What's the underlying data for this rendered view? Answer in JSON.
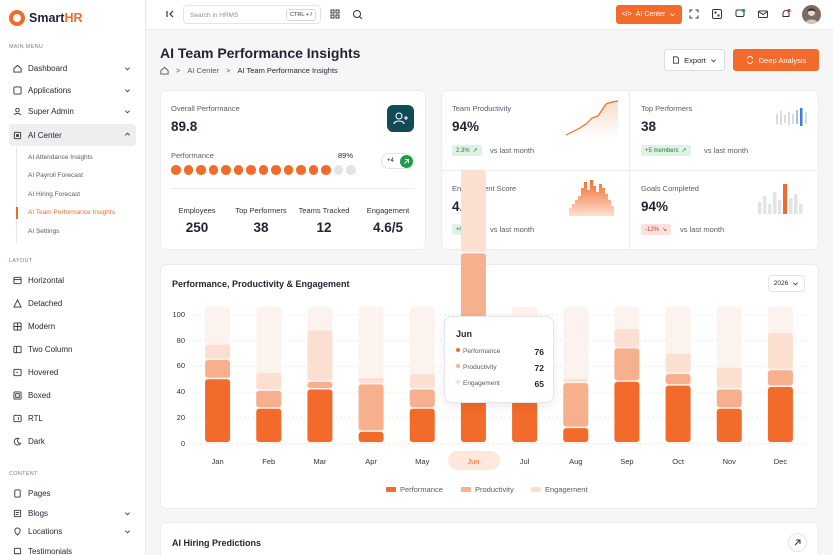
{
  "brand": {
    "name_a": "Smart",
    "name_b": "HR"
  },
  "sidebar": {
    "main_menu": "MAIN MENU",
    "items": [
      {
        "label": "Dashboard"
      },
      {
        "label": "Applications"
      },
      {
        "label": "Super Admin"
      },
      {
        "label": "AI Center"
      }
    ],
    "ai_sub": [
      "AI Attendance Insights",
      "AI Payroll Forecast",
      "AI Hiring Forecast",
      "AI Team Performance Insights",
      "AI Settings"
    ],
    "layout_header": "LAYOUT",
    "layout_items": [
      "Horizontal",
      "Detached",
      "Modern",
      "Two Column",
      "Hovered",
      "Boxed",
      "RTL",
      "Dark"
    ],
    "content_header": "CONTENT",
    "content_items": [
      "Pages",
      "Blogs",
      "Locations",
      "Testimonials"
    ]
  },
  "topbar": {
    "search_placeholder": "Search in HRMS",
    "shortcut": "CTRL + /",
    "ai_center": "AI Center"
  },
  "page": {
    "title": "AI Team Performance Insights",
    "crumb1": "AI Center",
    "crumb2": "AI Team Performance Insights",
    "export": "Export",
    "deep": "Deep Analysis"
  },
  "overall": {
    "label": "Overall Performance",
    "value": "89.8",
    "perf_label": "Performance",
    "perf_pct": "89%",
    "perf_fraction": 0.89,
    "plus": "+4",
    "stats": [
      {
        "label": "Employees",
        "value": "250"
      },
      {
        "label": "Top Performers",
        "value": "38"
      },
      {
        "label": "Teams Tracked",
        "value": "12"
      },
      {
        "label": "Engagement",
        "value": "4.6/5"
      }
    ]
  },
  "kpis": [
    {
      "label": "Team Productivity",
      "value": "94%",
      "badge": "2.3%",
      "trend": "up",
      "vs": "vs last month"
    },
    {
      "label": "Top Performers",
      "value": "38",
      "badge": "+5 members",
      "trend": "up",
      "vs": "vs last month"
    },
    {
      "label": "Engagement Score",
      "value": "4.6/5",
      "badge": "+0.3",
      "trend": "up",
      "vs": "vs last month"
    },
    {
      "label": "Goals Completed",
      "value": "94%",
      "badge": "-12%",
      "trend": "down",
      "vs": "vs last month"
    }
  ],
  "chart_title": "Performance, Productivity & Engagement",
  "year": "2026",
  "tooltip": {
    "month": "Jun",
    "rows": [
      {
        "name": "Performance",
        "value": "76"
      },
      {
        "name": "Productivity",
        "value": "72"
      },
      {
        "name": "Engagement",
        "value": "65"
      }
    ]
  },
  "chart_data": {
    "type": "bar",
    "categories": [
      "Jan",
      "Feb",
      "Mar",
      "Apr",
      "May",
      "Jun",
      "Jul",
      "Aug",
      "Sep",
      "Oct",
      "Nov",
      "Dec"
    ],
    "series": [
      {
        "name": "Performance",
        "values": [
          50,
          27,
          42,
          9,
          27,
          76,
          52,
          12,
          48,
          45,
          27,
          44
        ]
      },
      {
        "name": "Productivity",
        "values": [
          15,
          14,
          6,
          37,
          15,
          72,
          16,
          35,
          26,
          9,
          15,
          13
        ]
      },
      {
        "name": "Engagement",
        "values": [
          12,
          14,
          40,
          5,
          12,
          65,
          18,
          3,
          15,
          16,
          17,
          29
        ]
      }
    ],
    "ylim": [
      0,
      100
    ],
    "yticks": [
      0,
      20,
      40,
      60,
      80,
      100
    ],
    "highlight": "Jun",
    "colors": {
      "Performance": "#f26b2a",
      "Productivity": "#f7b08d",
      "Engagement": "#fbe0d2",
      "track": "#fdf3ee"
    }
  },
  "hiring": {
    "title": "AI Hiring Predictions"
  }
}
